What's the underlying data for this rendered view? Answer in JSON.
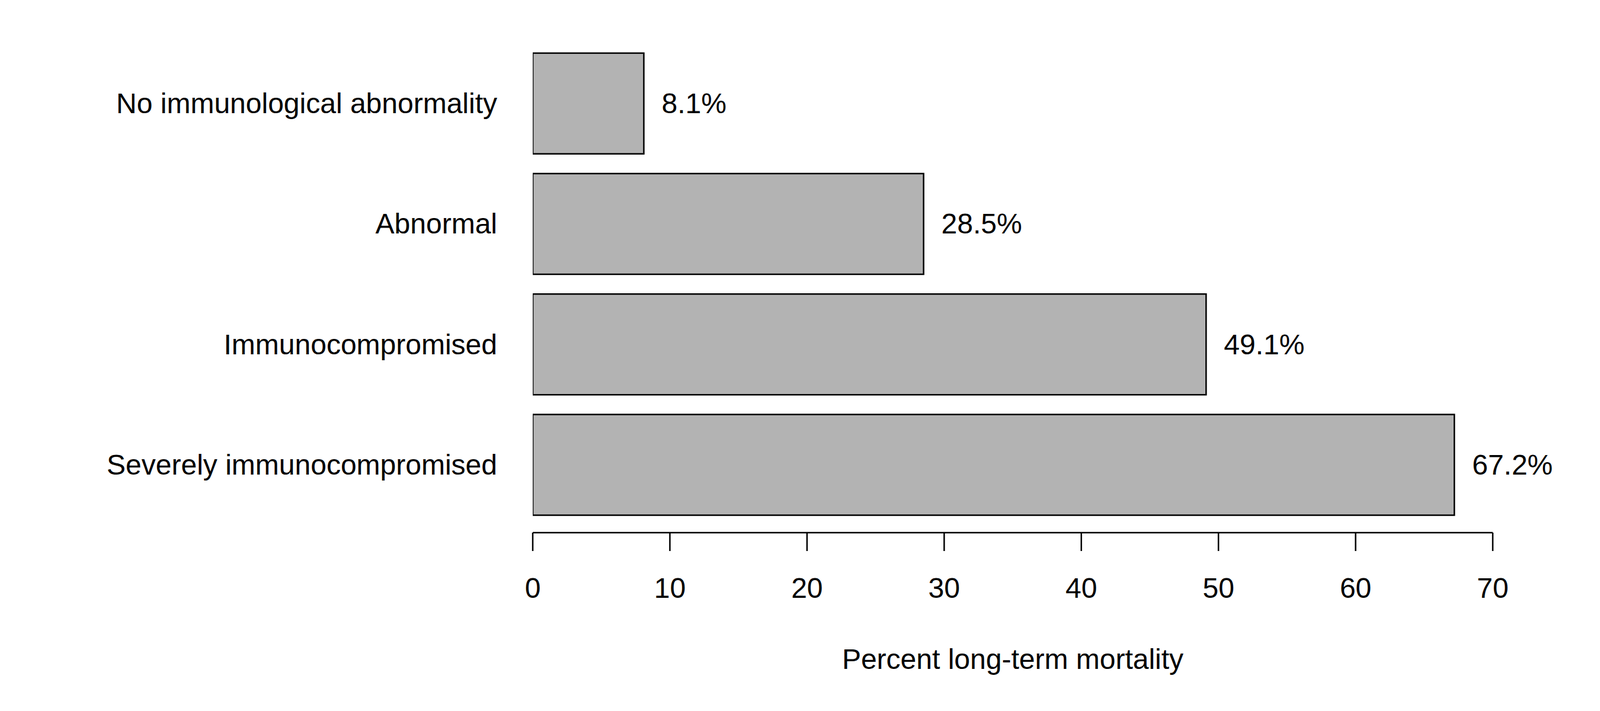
{
  "chart_data": {
    "type": "bar",
    "orientation": "horizontal",
    "categories": [
      "No immunological abnormality",
      "Abnormal",
      "Immunocompromised",
      "Severely immunocompromised"
    ],
    "values": [
      8.1,
      28.5,
      49.1,
      67.2
    ],
    "value_labels": [
      "8.1%",
      "28.5%",
      "49.1%",
      "67.2%"
    ],
    "data_labels": true,
    "color": "#b3b3b3",
    "x_label": "Percent long-term mortality",
    "xlim": [
      0,
      70
    ],
    "xticks": [
      0,
      10,
      20,
      30,
      40,
      50,
      60,
      70
    ],
    "grid": false
  }
}
